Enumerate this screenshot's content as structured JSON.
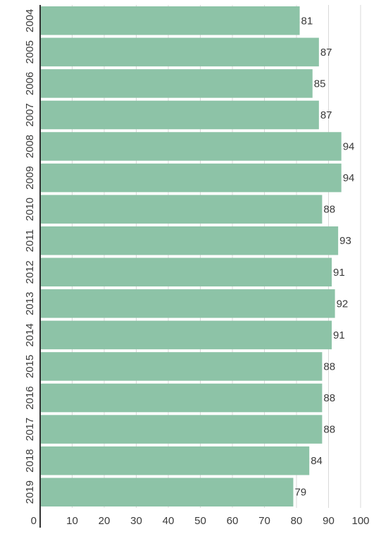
{
  "chart_data": {
    "type": "bar",
    "orientation": "horizontal",
    "title": "",
    "xlabel": "",
    "ylabel": "",
    "categories": [
      "2004",
      "2005",
      "2006",
      "2007",
      "2008",
      "2009",
      "2010",
      "2011",
      "2012",
      "2013",
      "2014",
      "2015",
      "2016",
      "2017",
      "2018",
      "2019"
    ],
    "values": [
      81,
      87,
      85,
      87,
      94,
      94,
      88,
      93,
      91,
      92,
      91,
      88,
      88,
      88,
      84,
      79
    ],
    "data_labels": [
      "81",
      "87",
      "85",
      "87",
      "94",
      "94",
      "88",
      "93",
      "91",
      "92",
      "91",
      "88",
      "88",
      "88",
      "84",
      "79"
    ],
    "xlim": [
      0,
      100
    ],
    "x_ticks": [
      0,
      10,
      20,
      30,
      40,
      50,
      60,
      70,
      80,
      90,
      100
    ],
    "x_tick_labels": [
      "0",
      "10",
      "20",
      "30",
      "40",
      "50",
      "60",
      "70",
      "80",
      "90",
      "100"
    ],
    "grid": true,
    "legend": "none",
    "colors": {
      "bar": "#8dc3a7",
      "grid": "#d9d9d9",
      "axis": "#333333",
      "text": "#3a3a3a"
    }
  }
}
